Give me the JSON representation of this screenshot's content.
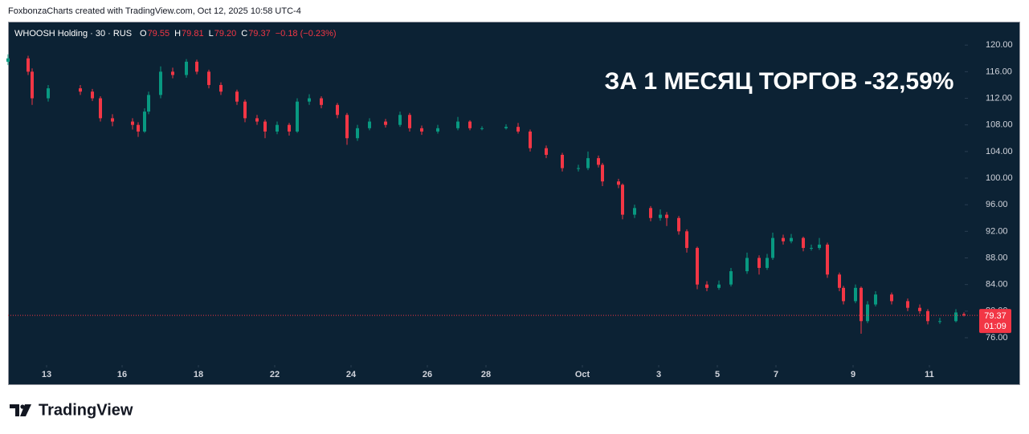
{
  "header": "FoxbonzaCharts created with TradingView.com, Oct 12, 2025 10:58 UTC-4",
  "chart_data": {
    "type": "candlestick",
    "symbol": "WHOOSH Holding · 30 · RUS",
    "ohlc_legend": [
      {
        "key": "O",
        "value": "79.55"
      },
      {
        "key": "H",
        "value": "79.81"
      },
      {
        "key": "L",
        "value": "79.20"
      },
      {
        "key": "C",
        "value": "79.37"
      }
    ],
    "change": "−0.18 (−0.23%)",
    "annotation": "ЗА 1 МЕСЯЦ ТОРГОВ -32,59%",
    "up_color": "#089981",
    "down_color": "#f23645",
    "last_price": 79.37,
    "countdown": "01:09",
    "xlim": [
      0,
      119
    ],
    "ylim": [
      71.9,
      123.4
    ],
    "yticks": [
      {
        "value": 76,
        "label": "76.00"
      },
      {
        "value": 80,
        "label": "80.00"
      },
      {
        "value": 84,
        "label": "84.00"
      },
      {
        "value": 88,
        "label": "88.00"
      },
      {
        "value": 92,
        "label": "92.00"
      },
      {
        "value": 96,
        "label": "96.00"
      },
      {
        "value": 100,
        "label": "100.00"
      },
      {
        "value": 104,
        "label": "104.00"
      },
      {
        "value": 108,
        "label": "108.00"
      },
      {
        "value": 112,
        "label": "112.00"
      },
      {
        "value": 116,
        "label": "116.00"
      },
      {
        "value": 120,
        "label": "120.00"
      }
    ],
    "xticks": [
      {
        "value": 4.8,
        "label": "13"
      },
      {
        "value": 14.2,
        "label": "16"
      },
      {
        "value": 23.7,
        "label": "18"
      },
      {
        "value": 33.2,
        "label": "22"
      },
      {
        "value": 42.7,
        "label": "24"
      },
      {
        "value": 52.2,
        "label": "26"
      },
      {
        "value": 59.5,
        "label": "28"
      },
      {
        "value": 71.5,
        "label": "Oct"
      },
      {
        "value": 81,
        "label": "3"
      },
      {
        "value": 88.3,
        "label": "5"
      },
      {
        "value": 95.6,
        "label": "7"
      },
      {
        "value": 105.2,
        "label": "9"
      },
      {
        "value": 114.7,
        "label": "11"
      }
    ],
    "x": [
      0,
      2.5,
      3,
      5,
      9,
      10.5,
      11.5,
      13,
      15.5,
      16.2,
      17,
      17.5,
      19,
      20.5,
      22.2,
      23.5,
      25,
      26.5,
      28.5,
      29.5,
      31,
      32,
      33.5,
      35,
      36,
      37.5,
      39,
      41,
      42.2,
      43.5,
      45,
      47,
      48.8,
      50,
      51.5,
      53.5,
      56,
      57.5,
      59,
      62,
      63.5,
      65,
      67,
      69,
      71,
      72.2,
      73.5,
      74,
      76,
      76.5,
      78,
      80,
      81.2,
      82,
      83.5,
      84.5,
      85.8,
      87,
      88.5,
      90,
      92,
      93.5,
      94.5,
      95.2,
      96.5,
      97.5,
      99,
      100,
      101,
      102,
      103.5,
      104,
      105.5,
      106.2,
      107,
      108,
      110,
      112,
      113.5,
      114.5,
      116,
      118,
      119
    ],
    "candles": [
      [
        117.5,
        118.6,
        117,
        118
      ],
      [
        118,
        118.4,
        115.5,
        116
      ],
      [
        116,
        116.5,
        111,
        112
      ],
      [
        112,
        114,
        111.5,
        113.5
      ],
      [
        113.5,
        114,
        112.5,
        113
      ],
      [
        113,
        113.4,
        111.6,
        112
      ],
      [
        112,
        112.3,
        108.5,
        109
      ],
      [
        109,
        109.6,
        107.8,
        108.5
      ],
      [
        108.5,
        109,
        107.3,
        108
      ],
      [
        108,
        108.4,
        106.2,
        107
      ],
      [
        107,
        110.5,
        106.8,
        110
      ],
      [
        110,
        113,
        109.6,
        112.5
      ],
      [
        112.5,
        116.8,
        112,
        116
      ],
      [
        116,
        116.6,
        115,
        115.5
      ],
      [
        115.5,
        117.9,
        115.1,
        117.5
      ],
      [
        117.5,
        117.8,
        115.6,
        116
      ],
      [
        116,
        116.3,
        113.5,
        114
      ],
      [
        114,
        114.4,
        112.5,
        113
      ],
      [
        113,
        113.3,
        111,
        111.5
      ],
      [
        111.5,
        111.8,
        108.4,
        109
      ],
      [
        109,
        109.5,
        108,
        108.5
      ],
      [
        108.5,
        108.8,
        106,
        107
      ],
      [
        107,
        108.5,
        106.6,
        108
      ],
      [
        108,
        108.3,
        106.4,
        107
      ],
      [
        107,
        112,
        106.8,
        111.5
      ],
      [
        111.5,
        112.6,
        111,
        112
      ],
      [
        112,
        112.3,
        110.5,
        111
      ],
      [
        111,
        111.3,
        109,
        109.5
      ],
      [
        109.5,
        109.8,
        105,
        106
      ],
      [
        106,
        108,
        105.6,
        107.5
      ],
      [
        107.5,
        109,
        107.2,
        108.5
      ],
      [
        108.5,
        108.9,
        107.6,
        108
      ],
      [
        108,
        110,
        107.7,
        109.5
      ],
      [
        109.5,
        109.8,
        107,
        107.5
      ],
      [
        107.5,
        107.9,
        106.5,
        107
      ],
      [
        107,
        108,
        106.7,
        107.5
      ],
      [
        107.5,
        109.2,
        107.2,
        108.5
      ],
      [
        108.5,
        108.7,
        107.2,
        107.5
      ],
      [
        107.5,
        107.8,
        107.2,
        107.5
      ],
      [
        107.5,
        108.1,
        107.3,
        107.7
      ],
      [
        107.7,
        108.3,
        106.7,
        107
      ],
      [
        107,
        107.3,
        104,
        104.5
      ],
      [
        104.5,
        104.9,
        103,
        103.5
      ],
      [
        103.5,
        103.8,
        101,
        101.5
      ],
      [
        101.5,
        102,
        101,
        101.5
      ],
      [
        101.5,
        104,
        101.2,
        103
      ],
      [
        103,
        103.4,
        101.6,
        102
      ],
      [
        102,
        102.3,
        98.8,
        99.5
      ],
      [
        99.5,
        99.9,
        98.5,
        99
      ],
      [
        99,
        99.2,
        93.8,
        94.5
      ],
      [
        94.5,
        96,
        94,
        95.5
      ],
      [
        95.5,
        95.8,
        93.5,
        94
      ],
      [
        94,
        95.3,
        93.6,
        94.5
      ],
      [
        94.5,
        94.9,
        92.8,
        94
      ],
      [
        94,
        94.3,
        91.5,
        92
      ],
      [
        92,
        92.3,
        88.8,
        89.5
      ],
      [
        89.5,
        89.7,
        83.3,
        84
      ],
      [
        84,
        84.5,
        83,
        83.5
      ],
      [
        83.5,
        84.6,
        83.2,
        84
      ],
      [
        84,
        86.5,
        83.7,
        86
      ],
      [
        86,
        88.8,
        85.6,
        88
      ],
      [
        88,
        88.4,
        85.5,
        86.5
      ],
      [
        86.5,
        88.6,
        86.2,
        88
      ],
      [
        88,
        91.8,
        87.7,
        91
      ],
      [
        91,
        91.5,
        90,
        90.5
      ],
      [
        90.5,
        91.6,
        90.2,
        91
      ],
      [
        91,
        91.2,
        89,
        89.5
      ],
      [
        89.5,
        90,
        89.1,
        89.5
      ],
      [
        89.5,
        91,
        89.2,
        90
      ],
      [
        90,
        90.3,
        85,
        85.5
      ],
      [
        85.5,
        85.8,
        83,
        83.5
      ],
      [
        83.5,
        83.8,
        81,
        81.5
      ],
      [
        81.5,
        84,
        81.2,
        83.5
      ],
      [
        83.5,
        83.7,
        76.6,
        78.5
      ],
      [
        78.5,
        81.5,
        78.2,
        81
      ],
      [
        81,
        83,
        80.7,
        82.5
      ],
      [
        82.5,
        82.8,
        81,
        81.5
      ],
      [
        81.5,
        81.9,
        80,
        80.5
      ],
      [
        80.5,
        81,
        79.6,
        80
      ],
      [
        80,
        80.3,
        78,
        78.5
      ],
      [
        78.5,
        79,
        78.1,
        78.5
      ],
      [
        78.5,
        80.3,
        78.3,
        79.8
      ],
      [
        79.55,
        79.81,
        79.2,
        79.37
      ]
    ]
  },
  "footer": {
    "brand": "TradingView"
  }
}
